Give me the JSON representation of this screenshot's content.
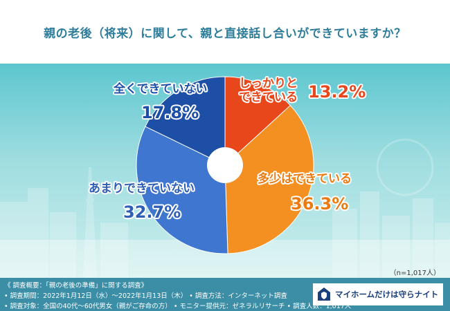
{
  "title": "親の老後（将来）に関して、親と直接話し合いができていますか？",
  "chart_data": {
    "type": "pie",
    "style": "donut",
    "start": "top",
    "direction": "clockwise",
    "slices": [
      {
        "label_lines": [
          "しっかりと",
          "できている"
        ],
        "value": 13.2,
        "value_text": "13.2%",
        "color": "#e8471b"
      },
      {
        "label_lines": [
          "多少はできている"
        ],
        "value": 36.3,
        "value_text": "36.3%",
        "color": "#f39021"
      },
      {
        "label_lines": [
          "あまりできていない"
        ],
        "value": 32.7,
        "value_text": "32.7%",
        "color": "#3f76cf"
      },
      {
        "label_lines": [
          "全くできていない"
        ],
        "value": 17.8,
        "value_text": "17.8%",
        "color": "#1d4fa6"
      }
    ],
    "note": "（n=1,017人）"
  },
  "footer": {
    "line1": "《 調査概要：「親の老後の準備」に関する調査》",
    "line2": "• 調査期間：2022年1月12日（水）～2022年1月13日（木） • 調査方法：インターネット調査",
    "line3": "• 調査対象：全国の40代～60代男女（親がご存命の方）  • モニター提供元：ゼネラルリサーチ  • 調査人数：1,017人"
  },
  "logo": {
    "text": "マイホームだけは守らナイト",
    "icon": "house-shield-icon"
  },
  "colors": {
    "title": "#2e7d9a",
    "footer_bg": "#3b8ea5",
    "bg_top": "#5cc6cf",
    "bg_bottom": "#cdeeed"
  }
}
